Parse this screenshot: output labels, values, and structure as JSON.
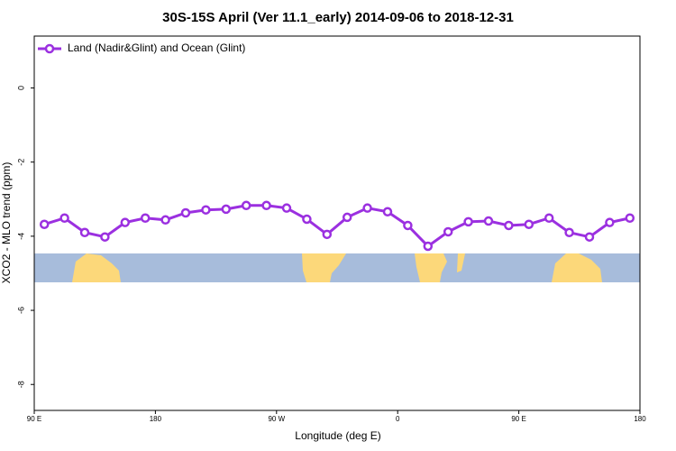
{
  "chart_data": {
    "type": "line",
    "title": "30S-15S April (Ver 11.1_early)   2014-09-06 to 2018-12-31",
    "x_label": "Longitude (deg E)",
    "y_label": "XCO2 - MLO trend (ppm)",
    "x": [
      97.5,
      112.5,
      127.5,
      142.5,
      157.5,
      172.5,
      187.5,
      202.5,
      217.5,
      232.5,
      247.5,
      262.5,
      277.5,
      292.5,
      307.5,
      322.5,
      337.5,
      352.5,
      367.5,
      382.5,
      397.5,
      412.5,
      427.5,
      442.5,
      457.5,
      472.5,
      487.5,
      502.5,
      517.5,
      532.5
    ],
    "series": [
      {
        "name": "Land (Nadir&Glint) and Ocean (Glint)",
        "color": "#9b30e0",
        "values": [
          -3.68,
          -3.51,
          -3.9,
          -4.02,
          -3.63,
          -3.51,
          -3.56,
          -3.37,
          -3.29,
          -3.27,
          -3.17,
          -3.17,
          -3.24,
          -3.54,
          -3.95,
          -3.49,
          -3.24,
          -3.34,
          -3.71,
          -4.27,
          -3.88,
          -3.61,
          -3.59,
          -3.71,
          -3.68,
          -3.51,
          -3.9,
          -4.02,
          -3.63,
          -3.51
        ]
      }
    ],
    "xlim": [
      90,
      540
    ],
    "xticks": [
      {
        "value": 90,
        "label": "90 E"
      },
      180,
      {
        "value": 270,
        "label": "90 W"
      },
      {
        "value": 360,
        "label": "0"
      },
      {
        "value": 450,
        "label": "90 E"
      },
      {
        "value": 540,
        "label": "180"
      }
    ],
    "ylim": [
      -8.7,
      1.4
    ],
    "yticks": [
      0,
      -2,
      -4,
      -6,
      -8
    ],
    "legend": "top-left",
    "grid": false
  }
}
